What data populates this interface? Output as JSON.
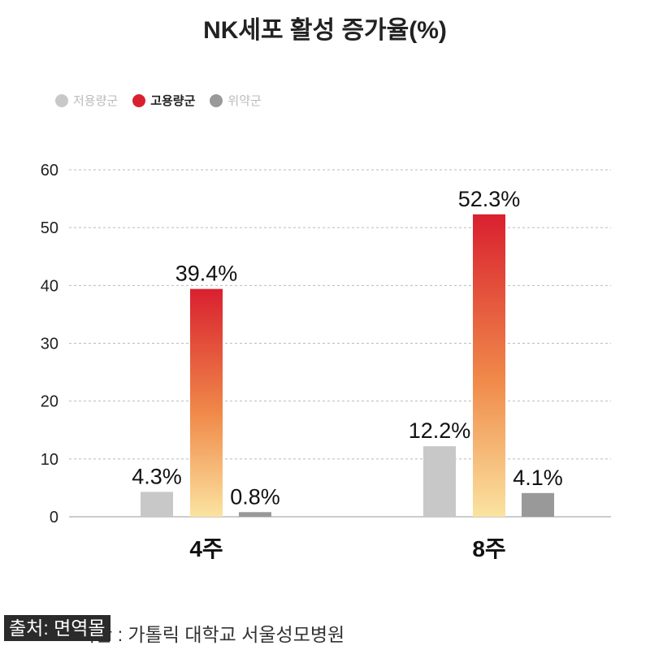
{
  "chart_data": {
    "type": "bar",
    "title": "NK세포 활성 증가율(%)",
    "categories": [
      "4주",
      "8주"
    ],
    "series": [
      {
        "name": "저용량군",
        "values": [
          4.3,
          12.2
        ],
        "labels": [
          "4.3%",
          "12.2%"
        ],
        "color": "#c8c8c8"
      },
      {
        "name": "고용량군",
        "values": [
          39.4,
          52.3
        ],
        "labels": [
          "39.4%",
          "52.3%"
        ],
        "color": "#d9202f",
        "gradient_bottom": "#fbe3a0"
      },
      {
        "name": "위약군",
        "values": [
          0.8,
          4.1
        ],
        "labels": [
          "0.8%",
          "4.1%"
        ],
        "color": "#999999"
      }
    ],
    "yticks": [
      "0",
      "10",
      "20",
      "30",
      "40",
      "50",
      "60"
    ],
    "ylim": [
      0,
      60
    ],
    "grid": true,
    "legend": "top-left",
    "xlabel": "",
    "ylabel": ""
  },
  "footer": "기관 : 가톨릭 대학교 서울성모병원",
  "source_badge": "출처: 면역몰"
}
